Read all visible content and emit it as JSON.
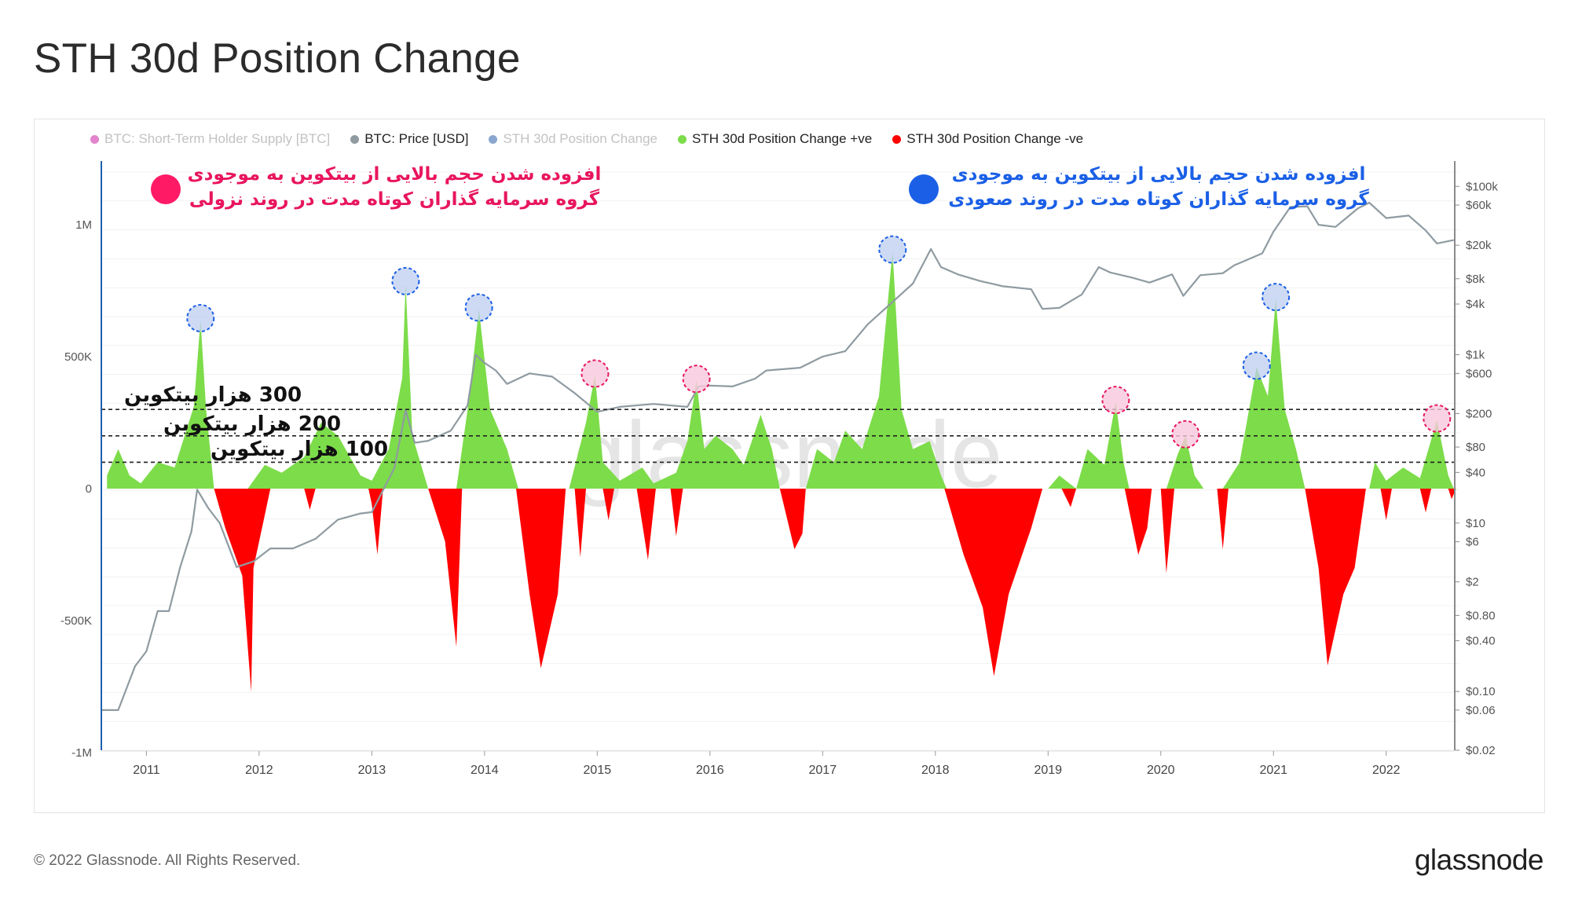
{
  "title": "STH 30d Position Change",
  "footer": "© 2022 Glassnode. All Rights Reserved.",
  "brand": "glassnode",
  "watermark": "glassnode",
  "legend": [
    {
      "label": "BTC: Short-Term Holder Supply [BTC]",
      "color": "#cc1fa3",
      "faded": true
    },
    {
      "label": "BTC: Price [USD]",
      "color": "#8f9ba1",
      "faded": false
    },
    {
      "label": "STH 30d Position Change",
      "color": "#2a5da8",
      "faded": true
    },
    {
      "label": "STH 30d Position Change +ve",
      "color": "#7ddc4a",
      "faded": false
    },
    {
      "label": "STH 30d Position Change -ve",
      "color": "#ff0000",
      "faded": false
    }
  ],
  "annotations": {
    "decline": {
      "line1": "افزوده شدن حجم بالایی از بیتکوین به موجودی",
      "line2": "گروه سرمایه گذاران کوتاه مدت در روند نزولی",
      "color": "#e8155e"
    },
    "rise": {
      "line1": "افزوده شدن حجم بالایی از بیتکوین به موجودی",
      "line2": "گروه سرمایه گذاران کوتاه مدت در روند صعودی",
      "color": "#1a5fe6"
    },
    "levels": [
      "300 هزار بیتکوین",
      "200 هزار بیتکوین",
      "100 هزار بیتکوین"
    ]
  },
  "chart_data": {
    "type": "area",
    "x_axis": {
      "ticks": [
        "2011",
        "2012",
        "2013",
        "2014",
        "2015",
        "2016",
        "2017",
        "2018",
        "2019",
        "2020",
        "2021",
        "2022"
      ],
      "range": [
        2010.6,
        2022.65
      ]
    },
    "y_left": {
      "ticks": [
        "1M",
        "500K",
        "0",
        "-500K",
        "-1M"
      ],
      "tick_values": [
        1000000,
        500000,
        0,
        -500000,
        -1000000
      ],
      "range": [
        -1000000,
        1000000
      ]
    },
    "y_right": {
      "scale": "log",
      "ticks": [
        "$100k",
        "$60k",
        "$20k",
        "$8k",
        "$4k",
        "$1k",
        "$600",
        "$200",
        "$80",
        "$40",
        "$10",
        "$6",
        "$2",
        "$0.80",
        "$0.40",
        "$0.10",
        "$0.06",
        "$0.02"
      ],
      "tick_values": [
        100000,
        60000,
        20000,
        8000,
        4000,
        1000,
        600,
        200,
        80,
        40,
        10,
        6,
        2,
        0.8,
        0.4,
        0.1,
        0.06,
        0.02
      ],
      "range": [
        0.02,
        200000
      ]
    },
    "threshold_lines": [
      300000,
      200000,
      100000
    ],
    "series": [
      {
        "name": "BTC: Price [USD]",
        "axis": "right",
        "color": "#8f9ba1",
        "points": [
          [
            2010.6,
            0.06
          ],
          [
            2010.75,
            0.06
          ],
          [
            2010.9,
            0.2
          ],
          [
            2011.0,
            0.3
          ],
          [
            2011.1,
            0.9
          ],
          [
            2011.2,
            0.9
          ],
          [
            2011.3,
            3
          ],
          [
            2011.4,
            8
          ],
          [
            2011.45,
            25
          ],
          [
            2011.55,
            15
          ],
          [
            2011.65,
            10
          ],
          [
            2011.8,
            3
          ],
          [
            2011.95,
            3.5
          ],
          [
            2012.1,
            5
          ],
          [
            2012.3,
            5
          ],
          [
            2012.5,
            6.5
          ],
          [
            2012.7,
            11
          ],
          [
            2012.9,
            13
          ],
          [
            2013.0,
            13.5
          ],
          [
            2013.2,
            45
          ],
          [
            2013.3,
            220
          ],
          [
            2013.38,
            90
          ],
          [
            2013.5,
            95
          ],
          [
            2013.7,
            125
          ],
          [
            2013.85,
            250
          ],
          [
            2013.92,
            1000
          ],
          [
            2014.0,
            800
          ],
          [
            2014.1,
            650
          ],
          [
            2014.2,
            450
          ],
          [
            2014.4,
            600
          ],
          [
            2014.6,
            550
          ],
          [
            2014.8,
            350
          ],
          [
            2015.0,
            210
          ],
          [
            2015.2,
            240
          ],
          [
            2015.5,
            260
          ],
          [
            2015.8,
            240
          ],
          [
            2015.9,
            420
          ],
          [
            2016.0,
            430
          ],
          [
            2016.2,
            420
          ],
          [
            2016.4,
            520
          ],
          [
            2016.5,
            650
          ],
          [
            2016.8,
            700
          ],
          [
            2017.0,
            950
          ],
          [
            2017.2,
            1100
          ],
          [
            2017.4,
            2300
          ],
          [
            2017.6,
            4000
          ],
          [
            2017.8,
            7000
          ],
          [
            2017.96,
            18000
          ],
          [
            2018.05,
            11000
          ],
          [
            2018.2,
            9000
          ],
          [
            2018.4,
            7500
          ],
          [
            2018.6,
            6500
          ],
          [
            2018.85,
            6000
          ],
          [
            2018.95,
            3500
          ],
          [
            2019.1,
            3600
          ],
          [
            2019.3,
            5200
          ],
          [
            2019.45,
            11000
          ],
          [
            2019.55,
            9500
          ],
          [
            2019.75,
            8200
          ],
          [
            2019.9,
            7200
          ],
          [
            2020.1,
            9000
          ],
          [
            2020.2,
            5000
          ],
          [
            2020.35,
            8800
          ],
          [
            2020.55,
            9300
          ],
          [
            2020.65,
            11500
          ],
          [
            2020.9,
            16000
          ],
          [
            2021.0,
            29000
          ],
          [
            2021.15,
            57000
          ],
          [
            2021.3,
            58000
          ],
          [
            2021.4,
            35000
          ],
          [
            2021.55,
            33000
          ],
          [
            2021.75,
            55000
          ],
          [
            2021.85,
            64000
          ],
          [
            2022.0,
            42000
          ],
          [
            2022.2,
            45000
          ],
          [
            2022.35,
            30000
          ],
          [
            2022.45,
            21000
          ],
          [
            2022.6,
            23000
          ]
        ]
      },
      {
        "name": "STH 30d Position Change +ve",
        "axis": "left",
        "color": "#7ddc4a",
        "points": [
          [
            2010.65,
            50000
          ],
          [
            2010.75,
            150000
          ],
          [
            2010.85,
            50000
          ],
          [
            2010.95,
            20000
          ],
          [
            2011.1,
            100000
          ],
          [
            2011.25,
            80000
          ],
          [
            2011.42,
            310000
          ],
          [
            2011.48,
            640000
          ],
          [
            2011.53,
            300000
          ],
          [
            2011.6,
            0
          ],
          [
            2011.9,
            0
          ],
          [
            2012.05,
            90000
          ],
          [
            2012.2,
            60000
          ],
          [
            2012.4,
            120000
          ],
          [
            2012.55,
            250000
          ],
          [
            2012.7,
            200000
          ],
          [
            2012.9,
            50000
          ],
          [
            2013.0,
            30000
          ],
          [
            2013.15,
            150000
          ],
          [
            2013.27,
            420000
          ],
          [
            2013.3,
            780000
          ],
          [
            2013.36,
            200000
          ],
          [
            2013.5,
            0
          ],
          [
            2013.75,
            0
          ],
          [
            2013.85,
            300000
          ],
          [
            2013.95,
            680000
          ],
          [
            2014.05,
            300000
          ],
          [
            2014.2,
            150000
          ],
          [
            2014.3,
            0
          ],
          [
            2014.75,
            0
          ],
          [
            2014.9,
            250000
          ],
          [
            2014.98,
            430000
          ],
          [
            2015.05,
            100000
          ],
          [
            2015.2,
            30000
          ],
          [
            2015.4,
            80000
          ],
          [
            2015.5,
            20000
          ],
          [
            2015.7,
            60000
          ],
          [
            2015.8,
            180000
          ],
          [
            2015.88,
            410000
          ],
          [
            2015.95,
            150000
          ],
          [
            2016.05,
            200000
          ],
          [
            2016.2,
            150000
          ],
          [
            2016.3,
            90000
          ],
          [
            2016.45,
            280000
          ],
          [
            2016.55,
            150000
          ],
          [
            2016.62,
            0
          ],
          [
            2016.85,
            0
          ],
          [
            2016.95,
            150000
          ],
          [
            2017.1,
            100000
          ],
          [
            2017.2,
            220000
          ],
          [
            2017.35,
            150000
          ],
          [
            2017.5,
            350000
          ],
          [
            2017.62,
            900000
          ],
          [
            2017.7,
            300000
          ],
          [
            2017.8,
            150000
          ],
          [
            2017.95,
            180000
          ],
          [
            2018.05,
            50000
          ],
          [
            2018.1,
            0
          ],
          [
            2019.0,
            0
          ],
          [
            2019.1,
            50000
          ],
          [
            2019.25,
            0
          ],
          [
            2019.35,
            150000
          ],
          [
            2019.5,
            90000
          ],
          [
            2019.6,
            330000
          ],
          [
            2019.67,
            100000
          ],
          [
            2019.72,
            0
          ],
          [
            2020.05,
            0
          ],
          [
            2020.15,
            130000
          ],
          [
            2020.22,
            200000
          ],
          [
            2020.3,
            50000
          ],
          [
            2020.38,
            0
          ],
          [
            2020.55,
            0
          ],
          [
            2020.7,
            100000
          ],
          [
            2020.85,
            460000
          ],
          [
            2020.95,
            350000
          ],
          [
            2021.02,
            720000
          ],
          [
            2021.1,
            300000
          ],
          [
            2021.2,
            150000
          ],
          [
            2021.28,
            0
          ],
          [
            2021.85,
            0
          ],
          [
            2021.9,
            100000
          ],
          [
            2022.0,
            30000
          ],
          [
            2022.15,
            80000
          ],
          [
            2022.3,
            40000
          ],
          [
            2022.45,
            260000
          ],
          [
            2022.55,
            50000
          ],
          [
            2022.6,
            0
          ]
        ]
      },
      {
        "name": "STH 30d Position Change -ve",
        "axis": "left",
        "color": "#ff0000",
        "points": [
          [
            2011.6,
            0
          ],
          [
            2011.7,
            -150000
          ],
          [
            2011.85,
            -330000
          ],
          [
            2011.93,
            -770000
          ],
          [
            2011.95,
            -300000
          ],
          [
            2012.05,
            -100000
          ],
          [
            2012.1,
            0
          ],
          [
            2012.4,
            0
          ],
          [
            2012.45,
            -80000
          ],
          [
            2012.5,
            0
          ],
          [
            2012.97,
            0
          ],
          [
            2013.0,
            -60000
          ],
          [
            2013.05,
            -250000
          ],
          [
            2013.1,
            0
          ],
          [
            2013.5,
            0
          ],
          [
            2013.65,
            -200000
          ],
          [
            2013.75,
            -600000
          ],
          [
            2013.8,
            0
          ],
          [
            2014.28,
            0
          ],
          [
            2014.4,
            -400000
          ],
          [
            2014.5,
            -680000
          ],
          [
            2014.65,
            -400000
          ],
          [
            2014.72,
            0
          ],
          [
            2014.8,
            0
          ],
          [
            2014.85,
            -260000
          ],
          [
            2014.9,
            0
          ],
          [
            2015.05,
            0
          ],
          [
            2015.1,
            -120000
          ],
          [
            2015.15,
            0
          ],
          [
            2015.35,
            0
          ],
          [
            2015.45,
            -270000
          ],
          [
            2015.52,
            0
          ],
          [
            2015.65,
            0
          ],
          [
            2015.7,
            -180000
          ],
          [
            2015.76,
            0
          ],
          [
            2016.62,
            0
          ],
          [
            2016.75,
            -230000
          ],
          [
            2016.82,
            -170000
          ],
          [
            2016.85,
            0
          ],
          [
            2018.08,
            0
          ],
          [
            2018.25,
            -250000
          ],
          [
            2018.42,
            -450000
          ],
          [
            2018.52,
            -710000
          ],
          [
            2018.65,
            -400000
          ],
          [
            2018.85,
            -150000
          ],
          [
            2018.95,
            0
          ],
          [
            2019.12,
            0
          ],
          [
            2019.2,
            -70000
          ],
          [
            2019.25,
            0
          ],
          [
            2019.68,
            0
          ],
          [
            2019.8,
            -250000
          ],
          [
            2019.88,
            -150000
          ],
          [
            2019.92,
            0
          ],
          [
            2020.0,
            0
          ],
          [
            2020.05,
            -320000
          ],
          [
            2020.12,
            0
          ],
          [
            2020.5,
            0
          ],
          [
            2020.55,
            -230000
          ],
          [
            2020.6,
            0
          ],
          [
            2021.28,
            0
          ],
          [
            2021.4,
            -300000
          ],
          [
            2021.48,
            -670000
          ],
          [
            2021.62,
            -400000
          ],
          [
            2021.72,
            -300000
          ],
          [
            2021.82,
            0
          ],
          [
            2021.95,
            0
          ],
          [
            2022.0,
            -120000
          ],
          [
            2022.05,
            0
          ],
          [
            2022.3,
            0
          ],
          [
            2022.35,
            -90000
          ],
          [
            2022.4,
            0
          ],
          [
            2022.55,
            0
          ],
          [
            2022.58,
            -40000
          ],
          [
            2022.62,
            0
          ]
        ]
      }
    ],
    "highlighted_peaks": [
      {
        "x": 2011.48,
        "y": 640000,
        "trend": "rise"
      },
      {
        "x": 2013.3,
        "y": 780000,
        "trend": "rise"
      },
      {
        "x": 2013.95,
        "y": 680000,
        "trend": "rise"
      },
      {
        "x": 2014.98,
        "y": 430000,
        "trend": "decline"
      },
      {
        "x": 2015.88,
        "y": 410000,
        "trend": "decline"
      },
      {
        "x": 2017.62,
        "y": 900000,
        "trend": "rise"
      },
      {
        "x": 2019.6,
        "y": 330000,
        "trend": "decline"
      },
      {
        "x": 2020.22,
        "y": 200000,
        "trend": "decline"
      },
      {
        "x": 2020.85,
        "y": 460000,
        "trend": "rise"
      },
      {
        "x": 2021.02,
        "y": 720000,
        "trend": "rise"
      },
      {
        "x": 2022.45,
        "y": 260000,
        "trend": "decline"
      }
    ],
    "colors": {
      "price": "#8f9ba1",
      "positive": "#7ddc4a",
      "negative": "#ff0000",
      "axis_left": "#1d5fb0",
      "rise_highlight": "#1a5fe6",
      "decline_highlight": "#e8155e"
    }
  }
}
